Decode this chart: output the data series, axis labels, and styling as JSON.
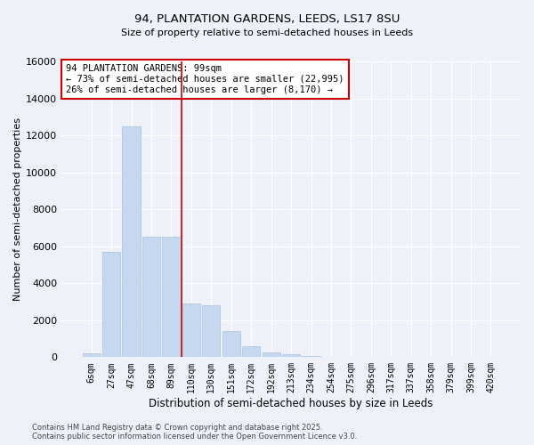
{
  "title_line1": "94, PLANTATION GARDENS, LEEDS, LS17 8SU",
  "title_line2": "Size of property relative to semi-detached houses in Leeds",
  "xlabel": "Distribution of semi-detached houses by size in Leeds",
  "ylabel": "Number of semi-detached properties",
  "annotation_line1": "94 PLANTATION GARDENS: 99sqm",
  "annotation_line2": "← 73% of semi-detached houses are smaller (22,995)",
  "annotation_line3": "26% of semi-detached houses are larger (8,170) →",
  "footer_line1": "Contains HM Land Registry data © Crown copyright and database right 2025.",
  "footer_line2": "Contains public sector information licensed under the Open Government Licence v3.0.",
  "categories": [
    "6sqm",
    "27sqm",
    "47sqm",
    "68sqm",
    "89sqm",
    "110sqm",
    "130sqm",
    "151sqm",
    "172sqm",
    "192sqm",
    "213sqm",
    "234sqm",
    "254sqm",
    "275sqm",
    "296sqm",
    "317sqm",
    "337sqm",
    "358sqm",
    "379sqm",
    "399sqm",
    "420sqm"
  ],
  "values": [
    220,
    5700,
    12500,
    6500,
    6500,
    2900,
    2800,
    1400,
    600,
    250,
    150,
    50,
    0,
    0,
    0,
    0,
    0,
    0,
    0,
    0,
    0
  ],
  "bar_color": "#c5d8ef",
  "bar_edge_color": "#a8c4e0",
  "vline_color": "#cc0000",
  "annotation_edge_color": "#cc0000",
  "background_color": "#eef2f8",
  "grid_color": "#ffffff",
  "ylim": [
    0,
    16000
  ],
  "yticks": [
    0,
    2000,
    4000,
    6000,
    8000,
    10000,
    12000,
    14000,
    16000
  ],
  "vline_pos": 4.5
}
